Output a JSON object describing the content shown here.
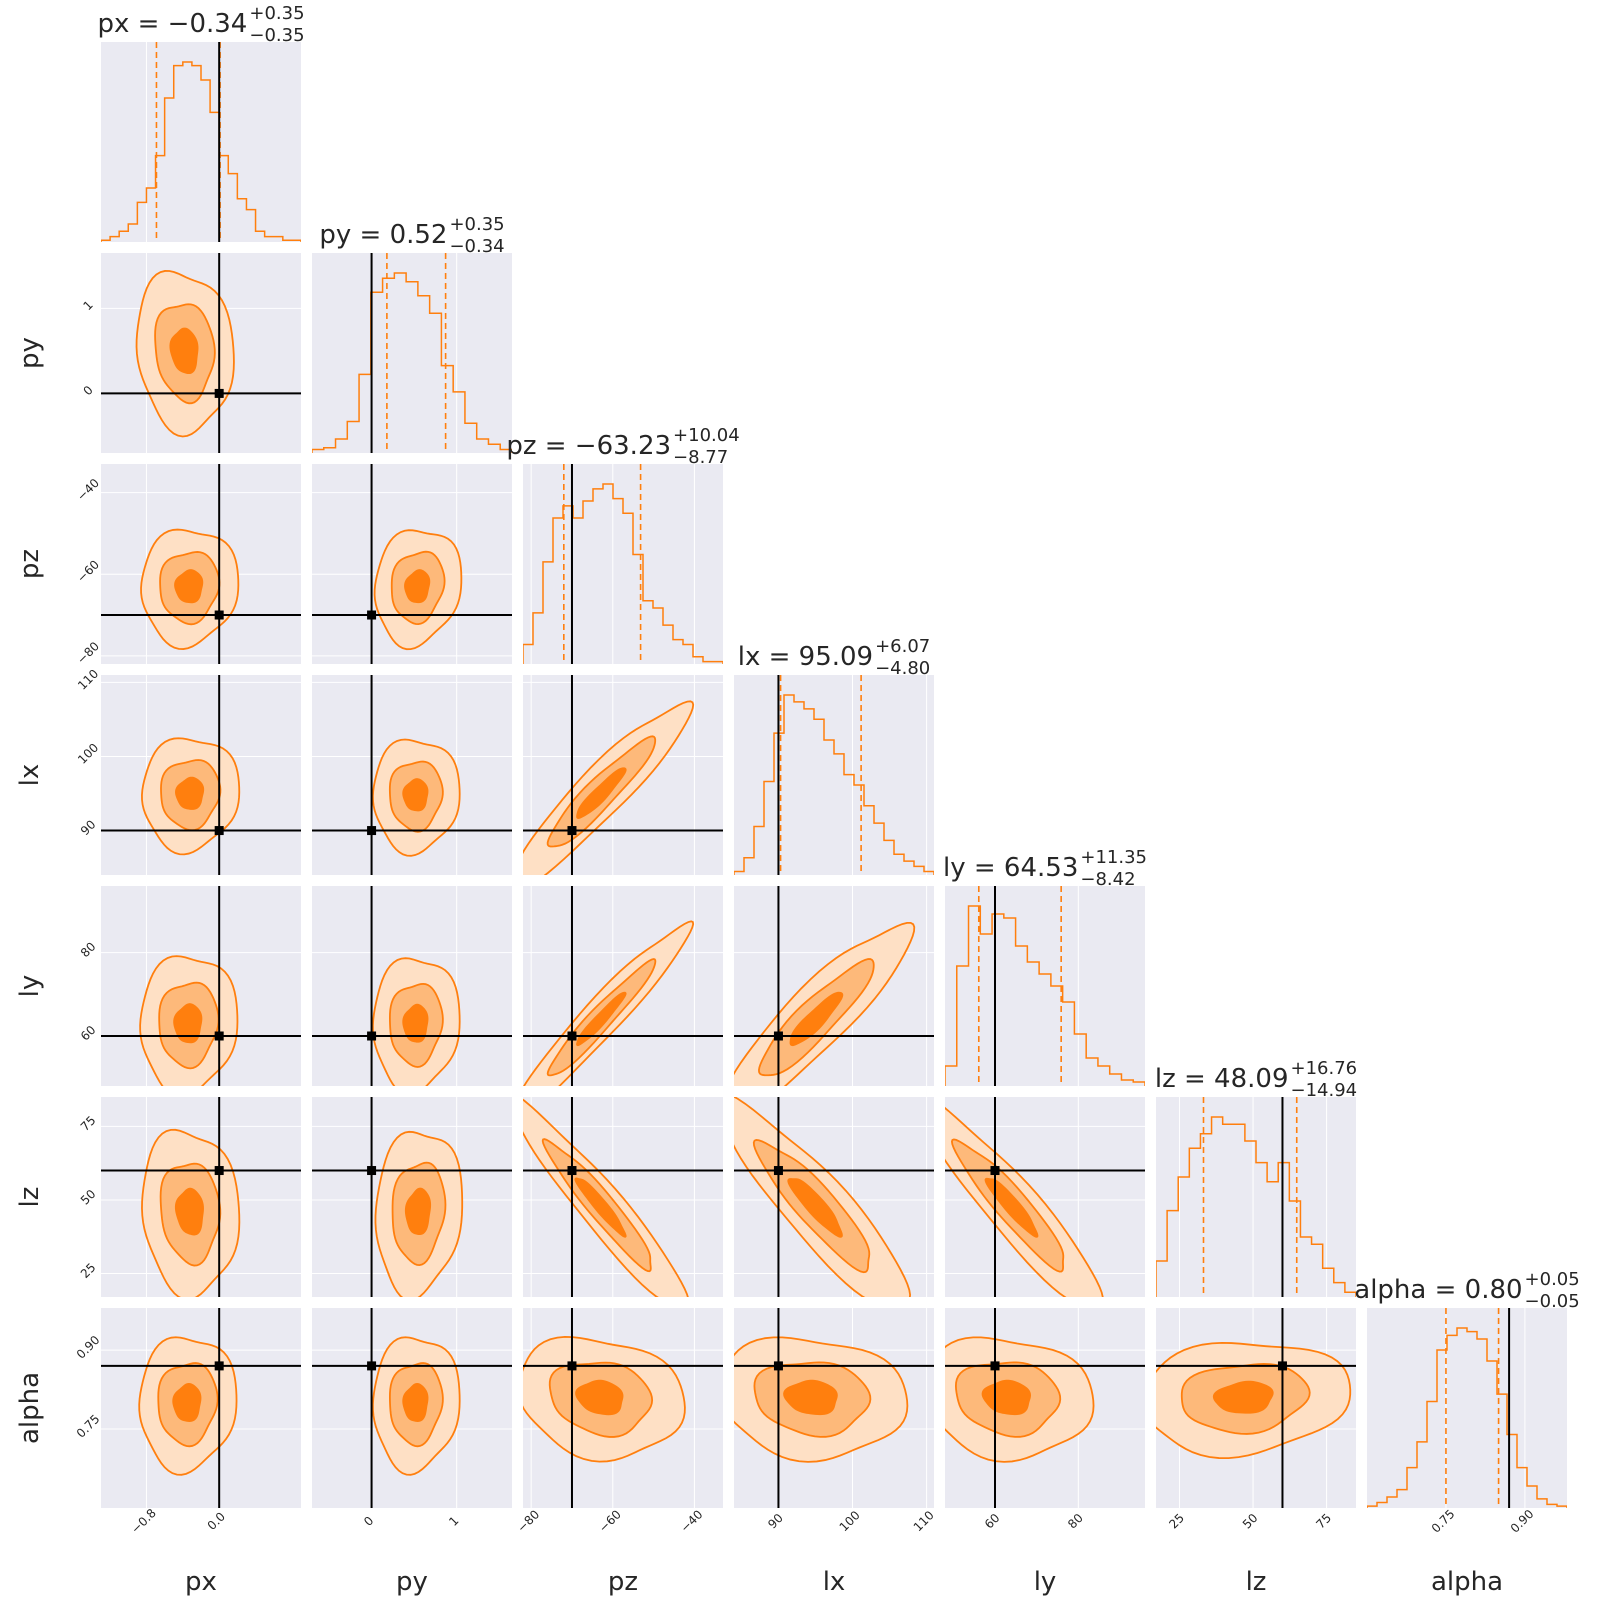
{
  "chart_data": {
    "type": "corner",
    "parameters": [
      "px",
      "py",
      "pz",
      "lx",
      "ly",
      "lz",
      "alpha"
    ],
    "colors": {
      "accent": "#ff7f0e",
      "fill_outer": "#fee0c5",
      "fill_mid": "#fdb97a",
      "fill_inner": "#ff7f0e",
      "truth": "#000000",
      "panel_bg": "#eaeaf2"
    },
    "titles": [
      {
        "param": "px",
        "main": "px = −0.34",
        "sup": "+0.35",
        "sub": "−0.35"
      },
      {
        "param": "py",
        "main": "py = 0.52",
        "sup": "+0.35",
        "sub": "−0.34"
      },
      {
        "param": "pz",
        "main": "pz = −63.23",
        "sup": "+10.04",
        "sub": "−8.77"
      },
      {
        "param": "lx",
        "main": "lx = 95.09",
        "sup": "+6.07",
        "sub": "−4.80"
      },
      {
        "param": "ly",
        "main": "ly = 64.53",
        "sup": "+11.35",
        "sub": "−8.42"
      },
      {
        "param": "lz",
        "main": "lz = 48.09",
        "sup": "+16.76",
        "sub": "−14.94"
      },
      {
        "param": "alpha",
        "main": "alpha = 0.80",
        "sup": "+0.05",
        "sub": "−0.05"
      }
    ],
    "axes": [
      {
        "param": "px",
        "range": [
          -1.3,
          0.9
        ],
        "ticks": [
          -0.8,
          0.0
        ],
        "tick_labels": [
          "−0.8",
          "0.0"
        ],
        "truth": 0.0,
        "median": -0.34,
        "q_lo": -0.69,
        "q_hi": 0.01
      },
      {
        "param": "py",
        "range": [
          -0.7,
          1.65
        ],
        "ticks": [
          0,
          1
        ],
        "tick_labels": [
          "0",
          "1"
        ],
        "truth": 0.0,
        "median": 0.52,
        "q_lo": 0.18,
        "q_hi": 0.87
      },
      {
        "param": "pz",
        "range": [
          -82,
          -33
        ],
        "ticks": [
          -80,
          -60,
          -40
        ],
        "tick_labels": [
          "−80",
          "−60",
          "−40"
        ],
        "truth": -70.0,
        "median": -63.23,
        "q_lo": -72.0,
        "q_hi": -53.19
      },
      {
        "param": "lx",
        "range": [
          84,
          111
        ],
        "ticks": [
          90,
          100,
          110
        ],
        "tick_labels": [
          "90",
          "100",
          "110"
        ],
        "truth": 90.0,
        "median": 95.09,
        "q_lo": 90.29,
        "q_hi": 101.16
      },
      {
        "param": "ly",
        "range": [
          48,
          96
        ],
        "ticks": [
          60,
          80
        ],
        "tick_labels": [
          "60",
          "80"
        ],
        "truth": 60.0,
        "median": 64.53,
        "q_lo": 56.11,
        "q_hi": 75.88
      },
      {
        "param": "lz",
        "range": [
          17,
          85
        ],
        "ticks": [
          25,
          50,
          75
        ],
        "tick_labels": [
          "25",
          "50",
          "75"
        ],
        "truth": 60.0,
        "median": 48.09,
        "q_lo": 33.15,
        "q_hi": 64.85
      },
      {
        "param": "alpha",
        "range": [
          0.6,
          0.98
        ],
        "ticks": [
          0.75,
          0.9
        ],
        "tick_labels": [
          "0.75",
          "0.90"
        ],
        "truth": 0.87,
        "median": 0.8,
        "q_lo": 0.75,
        "q_hi": 0.85
      }
    ],
    "histograms": [
      {
        "param": "px",
        "counts": [
          0.01,
          0.03,
          0.06,
          0.1,
          0.22,
          0.3,
          0.48,
          0.8,
          0.98,
          1.0,
          0.98,
          0.9,
          0.72,
          0.48,
          0.38,
          0.24,
          0.18,
          0.06,
          0.03,
          0.03,
          0.01,
          0.01
        ]
      },
      {
        "param": "py",
        "counts": [
          0.02,
          0.03,
          0.08,
          0.18,
          0.45,
          0.92,
          1.0,
          1.03,
          0.98,
          0.9,
          0.8,
          0.5,
          0.35,
          0.17,
          0.08,
          0.05,
          0.02
        ]
      },
      {
        "param": "pz",
        "counts": [
          0.08,
          0.21,
          0.42,
          0.6,
          0.65,
          0.6,
          0.67,
          0.72,
          0.74,
          0.68,
          0.62,
          0.45,
          0.26,
          0.23,
          0.16,
          0.1,
          0.08,
          0.03,
          0.01,
          0.01
        ]
      },
      {
        "param": "lx",
        "counts": [
          0.02,
          0.1,
          0.28,
          0.54,
          0.82,
          1.04,
          1.0,
          0.96,
          0.9,
          0.78,
          0.7,
          0.58,
          0.52,
          0.4,
          0.3,
          0.2,
          0.12,
          0.08,
          0.05,
          0.02
        ]
      },
      {
        "param": "ly",
        "counts": [
          0.1,
          0.6,
          0.9,
          0.76,
          0.86,
          0.84,
          0.7,
          0.62,
          0.56,
          0.5,
          0.42,
          0.26,
          0.14,
          0.1,
          0.06,
          0.03,
          0.02
        ]
      },
      {
        "param": "lz",
        "counts": [
          0.15,
          0.36,
          0.5,
          0.62,
          0.68,
          0.75,
          0.72,
          0.72,
          0.65,
          0.56,
          0.48,
          0.56,
          0.4,
          0.25,
          0.22,
          0.12,
          0.06,
          0.02
        ]
      },
      {
        "param": "alpha",
        "counts": [
          0.01,
          0.03,
          0.06,
          0.1,
          0.22,
          0.36,
          0.58,
          0.86,
          0.94,
          0.98,
          0.96,
          0.92,
          0.8,
          0.62,
          0.4,
          0.22,
          0.12,
          0.05,
          0.02,
          0.01
        ]
      }
    ],
    "contour_blobs": [
      {
        "row": "py",
        "col": "px",
        "cx": -0.38,
        "cy": 0.5,
        "rx": 0.21,
        "ry": 0.37,
        "rho": -0.1
      },
      {
        "row": "pz",
        "col": "px",
        "cx": -0.33,
        "cy": -63.0,
        "rx": 0.21,
        "ry": 5.6,
        "rho": 0.05
      },
      {
        "row": "pz",
        "col": "py",
        "cx": 0.54,
        "cy": -63.0,
        "rx": 0.2,
        "ry": 5.6,
        "rho": 0.12
      },
      {
        "row": "lx",
        "col": "px",
        "cx": -0.32,
        "cy": 95.0,
        "rx": 0.21,
        "ry": 3.0,
        "rho": 0.05
      },
      {
        "row": "lx",
        "col": "py",
        "cx": 0.52,
        "cy": 94.8,
        "rx": 0.2,
        "ry": 3.0,
        "rho": 0.03
      },
      {
        "row": "lx",
        "col": "pz",
        "cx": -63.0,
        "cy": 95.0,
        "rx": 8.5,
        "ry": 4.8,
        "rho": 0.93
      },
      {
        "row": "ly",
        "col": "px",
        "cx": -0.34,
        "cy": 63.0,
        "rx": 0.21,
        "ry": 6.5,
        "rho": 0.05
      },
      {
        "row": "ly",
        "col": "py",
        "cx": 0.52,
        "cy": 63.0,
        "rx": 0.2,
        "ry": 6.3,
        "rho": 0.05
      },
      {
        "row": "ly",
        "col": "pz",
        "cx": -63.0,
        "cy": 64.0,
        "rx": 8.5,
        "ry": 9.0,
        "rho": 0.96
      },
      {
        "row": "ly",
        "col": "lx",
        "cx": 95.0,
        "cy": 64.0,
        "rx": 5.0,
        "ry": 9.0,
        "rho": 0.9
      },
      {
        "row": "lz",
        "col": "px",
        "cx": -0.32,
        "cy": 46.0,
        "rx": 0.21,
        "ry": 11.0,
        "rho": -0.08
      },
      {
        "row": "lz",
        "col": "py",
        "cx": 0.55,
        "cy": 46.0,
        "rx": 0.2,
        "ry": 11.0,
        "rho": 0.1
      },
      {
        "row": "lz",
        "col": "pz",
        "cx": -63.0,
        "cy": 48.0,
        "rx": 8.5,
        "ry": 14.0,
        "rho": -0.95
      },
      {
        "row": "lz",
        "col": "lx",
        "cx": 95.0,
        "cy": 48.0,
        "rx": 5.0,
        "ry": 14.0,
        "rho": -0.9
      },
      {
        "row": "lz",
        "col": "ly",
        "cx": 64.0,
        "cy": 48.0,
        "rx": 8.6,
        "ry": 14.0,
        "rho": -0.93
      },
      {
        "row": "alpha",
        "col": "px",
        "cx": -0.35,
        "cy": 0.8,
        "rx": 0.21,
        "ry": 0.05,
        "rho": 0.05
      },
      {
        "row": "alpha",
        "col": "py",
        "cx": 0.52,
        "cy": 0.8,
        "rx": 0.2,
        "ry": 0.05,
        "rho": 0.05
      },
      {
        "row": "alpha",
        "col": "pz",
        "cx": -63.0,
        "cy": 0.81,
        "rx": 8.0,
        "ry": 0.045,
        "rho": -0.15
      },
      {
        "row": "alpha",
        "col": "lx",
        "cx": 94.5,
        "cy": 0.81,
        "rx": 5.0,
        "ry": 0.045,
        "rho": -0.1
      },
      {
        "row": "alpha",
        "col": "ly",
        "cx": 63.0,
        "cy": 0.81,
        "rx": 8.0,
        "ry": 0.045,
        "rho": -0.1
      },
      {
        "row": "alpha",
        "col": "lz",
        "cx": 47.0,
        "cy": 0.81,
        "rx": 14.0,
        "ry": 0.042,
        "rho": 0.1
      }
    ],
    "contour_levels": [
      0.7,
      1.55,
      2.55
    ]
  }
}
